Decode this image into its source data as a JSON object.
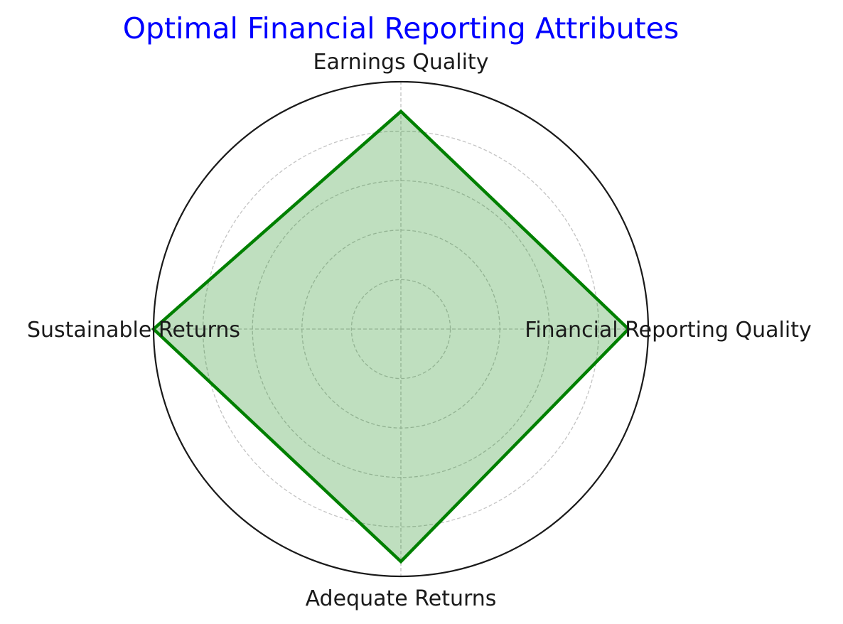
{
  "chart_data": {
    "type": "radar",
    "title": "Optimal Financial Reporting Attributes",
    "categories": [
      "Financial Reporting Quality",
      "Earnings Quality",
      "Sustainable Returns",
      "Adequate Returns"
    ],
    "series": [
      {
        "values": [
          92,
          88,
          100,
          94
        ]
      }
    ],
    "rlim": [
      0,
      100
    ],
    "r_gridlines": [
      20,
      40,
      60,
      80,
      100
    ],
    "grid": true,
    "radial_tick_labels_visible": false,
    "colors": {
      "title": "#0000ff",
      "series_line": "#008000",
      "series_fill": "#008000",
      "series_fill_opacity": 0.25
    }
  }
}
